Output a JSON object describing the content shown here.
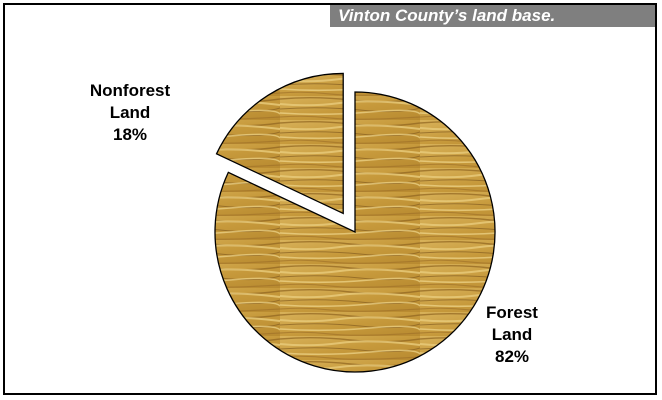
{
  "chart_data": {
    "type": "pie",
    "title": "Vinton County’s land base.",
    "categories": [
      "Forest Land",
      "Nonforest Land"
    ],
    "values": [
      82,
      18
    ],
    "labels": [
      {
        "name": "Forest Land",
        "lines": [
          "Forest",
          "Land",
          "82%"
        ]
      },
      {
        "name": "Nonforest Land",
        "lines": [
          "Nonforest",
          "Land",
          "18%"
        ]
      }
    ],
    "exploded": "Nonforest Land",
    "fill": "wood-grain",
    "colors": {
      "slice_base": "#c79a3c",
      "slice_light": "#e3c26e",
      "slice_dark": "#8f6420",
      "outline": "#000000",
      "title_bg": "#7f7f7f",
      "title_text": "#ffffff"
    }
  }
}
